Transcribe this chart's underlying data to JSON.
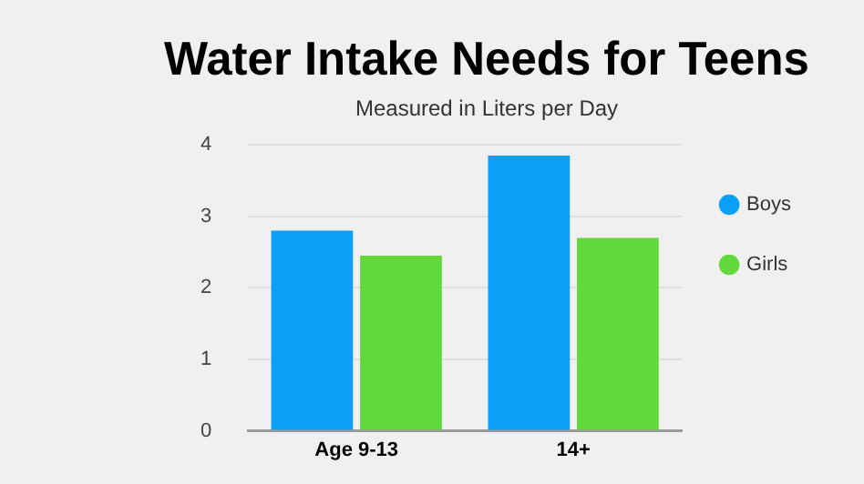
{
  "chart_data": {
    "type": "bar",
    "title": "Water Intake Needs for Teens",
    "subtitle": "Measured in Liters per Day",
    "categories": [
      "Age 9-13",
      "14+"
    ],
    "series": [
      {
        "name": "Boys",
        "color": "#0aa0f7",
        "values": [
          2.8,
          3.85
        ]
      },
      {
        "name": "Girls",
        "color": "#62d83a",
        "values": [
          2.45,
          2.7
        ]
      }
    ],
    "ylim": [
      0,
      4
    ],
    "yticks": [
      0,
      1,
      2,
      3,
      4
    ],
    "grid": "y",
    "legend": "right"
  }
}
